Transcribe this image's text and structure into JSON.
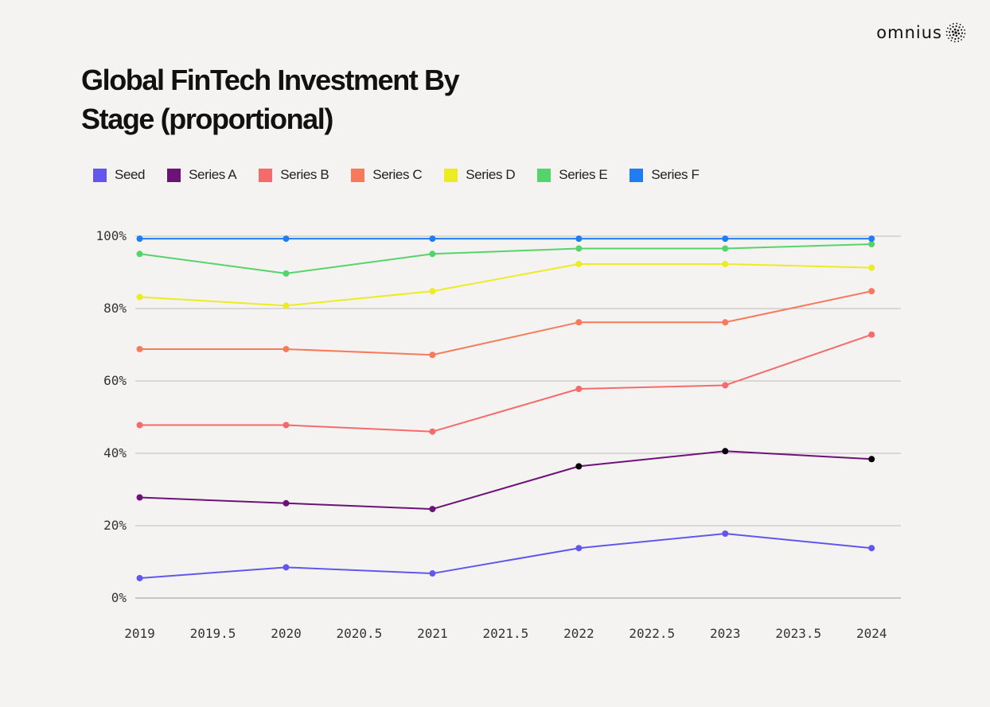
{
  "brand": {
    "name": "omnius",
    "icon": "dotted-sphere-icon"
  },
  "chart_data": {
    "type": "line",
    "title": "Global FinTech Investment By Stage (proportional)",
    "title_lines": [
      "Global FinTech Investment By",
      "Stage (proportional)"
    ],
    "xlabel": "",
    "ylabel": "",
    "x": [
      2019,
      2020,
      2021,
      2022,
      2023,
      2024
    ],
    "xlim": [
      2018.97,
      2024.2
    ],
    "ylim": [
      0,
      100
    ],
    "x_ticks": [
      "2019",
      "2019.5",
      "2020",
      "2020.5",
      "2021",
      "2021.5",
      "2022",
      "2022.5",
      "2023",
      "2023.5",
      "2024"
    ],
    "x_tick_values": [
      2019,
      2019.5,
      2020,
      2020.5,
      2021,
      2021.5,
      2022,
      2022.5,
      2023,
      2023.5,
      2024
    ],
    "y_ticks": [
      "0%",
      "20%",
      "40%",
      "60%",
      "80%",
      "100%"
    ],
    "y_tick_values": [
      0,
      20,
      40,
      60,
      80,
      100
    ],
    "grid": "horizontal",
    "legend_position": "top-left",
    "series": [
      {
        "name": "Seed",
        "color": "#6157ed",
        "values": [
          5.5,
          8.5,
          6.8,
          13.8,
          17.8,
          13.8
        ]
      },
      {
        "name": "Series A",
        "color": "#6d1279",
        "values": [
          27.8,
          26.2,
          24.6,
          36.4,
          40.6,
          38.4
        ]
      },
      {
        "name": "Series B",
        "color": "#f56a6a",
        "values": [
          47.8,
          47.8,
          46.0,
          57.8,
          58.8,
          72.8
        ]
      },
      {
        "name": "Series C",
        "color": "#f57b5c",
        "values": [
          68.8,
          68.8,
          67.2,
          76.2,
          76.2,
          84.8
        ]
      },
      {
        "name": "Series D",
        "color": "#ecec22",
        "values": [
          83.2,
          80.8,
          84.8,
          92.3,
          92.3,
          91.3
        ]
      },
      {
        "name": "Series E",
        "color": "#55d46c",
        "values": [
          95.1,
          89.7,
          95.1,
          96.6,
          96.6,
          97.8
        ]
      },
      {
        "name": "Series F",
        "color": "#1f7cf2",
        "values": [
          99.3,
          99.3,
          99.3,
          99.3,
          99.3,
          99.3
        ]
      }
    ]
  }
}
